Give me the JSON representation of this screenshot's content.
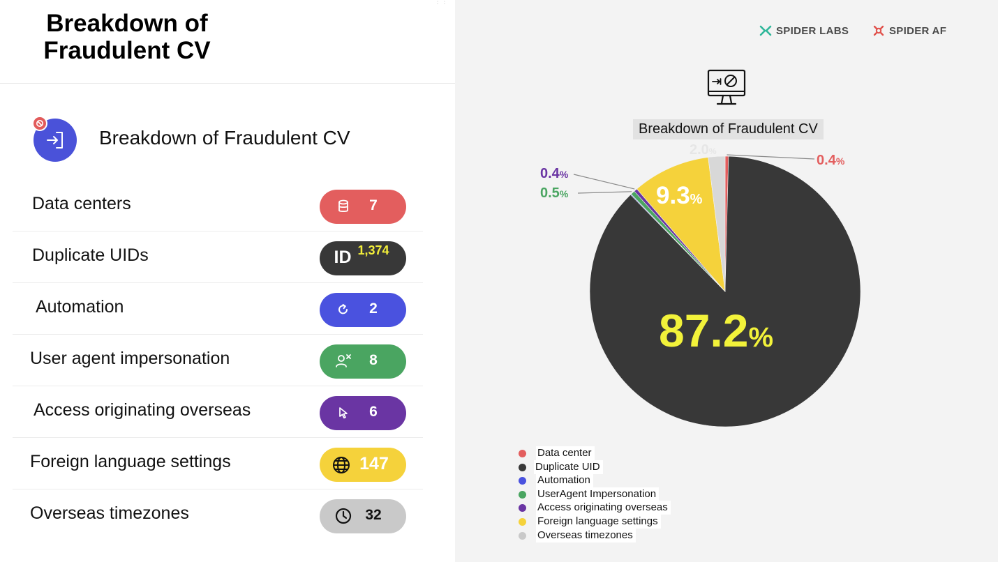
{
  "header": {
    "title": "Breakdown of Fraudulent CV"
  },
  "section": {
    "title": "Breakdown of Fraudulent CV"
  },
  "rows": [
    {
      "label": "Data centers",
      "value": "7",
      "icon": "database-icon",
      "color": "#e35e5e",
      "text_color": "#ffffff"
    },
    {
      "label": "Duplicate UIDs",
      "value": "1,374",
      "icon": "id-icon",
      "color": "#383838",
      "text_color": "#f2ee3a"
    },
    {
      "label": "Automation",
      "value": "2",
      "icon": "refresh-icon",
      "color": "#4a52df",
      "text_color": "#ffffff"
    },
    {
      "label": "User agent impersonation",
      "value": "8",
      "icon": "user-x-icon",
      "color": "#4aa561",
      "text_color": "#ffffff"
    },
    {
      "label": "Access originating overseas",
      "value": "6",
      "icon": "cursor-icon",
      "color": "#6a35a3",
      "text_color": "#ffffff"
    },
    {
      "label": "Foreign language settings",
      "value": "147",
      "icon": "globe-icon",
      "color": "#f5d23b",
      "text_color": "#ffffff"
    },
    {
      "label": "Overseas timezones",
      "value": "32",
      "icon": "clock-icon",
      "color": "#c9c9c9",
      "text_color": "#111111"
    }
  ],
  "brands": {
    "labs": "SPIDER LABS",
    "af": "SPIDER AF",
    "labs_color": "#2fb79a",
    "af_color": "#e0504a"
  },
  "chart_data": {
    "type": "pie",
    "title": "Breakdown of Fraudulent CV",
    "series": [
      {
        "name": "Data center",
        "value": 0.4,
        "color": "#e35e5e"
      },
      {
        "name": "Duplicate UID",
        "value": 87.2,
        "color": "#383838"
      },
      {
        "name": "Automation",
        "value": 0.1,
        "color": "#4a52df"
      },
      {
        "name": "UserAgent Impersonation",
        "value": 0.5,
        "color": "#4aa561"
      },
      {
        "name": "Access originating overseas",
        "value": 0.4,
        "color": "#6a35a3"
      },
      {
        "name": "Foreign language settings",
        "value": 9.3,
        "color": "#f5d23b"
      },
      {
        "name": "Overseas timezones",
        "value": 2.0,
        "color": "#d8d8d8"
      }
    ],
    "labels": [
      {
        "series": "Duplicate UID",
        "text": "87.2",
        "unit": "%",
        "color": "#f2f23a"
      },
      {
        "series": "Foreign language settings",
        "text": "9.3",
        "unit": "%",
        "color": "#ffffff"
      },
      {
        "series": "Overseas timezones",
        "text": "2.0",
        "unit": "%",
        "color": "#e6e6e6"
      },
      {
        "series": "Data center",
        "text": "0.4",
        "unit": "%",
        "color": "#e35e5e"
      },
      {
        "series": "Access originating overseas",
        "text": "0.4",
        "unit": "%",
        "color": "#6a35a3"
      },
      {
        "series": "UserAgent Impersonation",
        "text": "0.5",
        "unit": "%",
        "color": "#4aa561"
      }
    ],
    "legend_position": "bottom-left"
  }
}
